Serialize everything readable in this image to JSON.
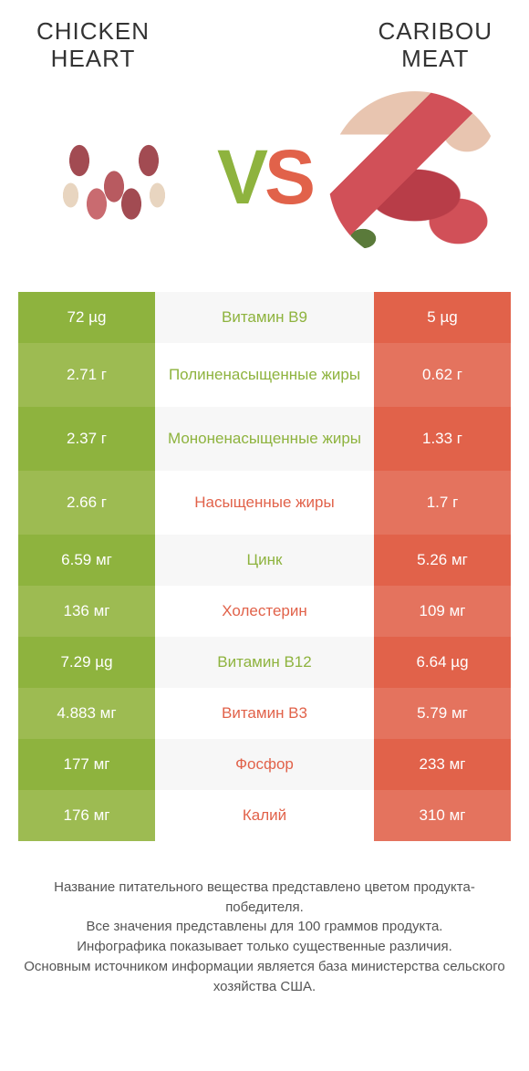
{
  "header": {
    "left_title": "CHICKEN\nHEART",
    "right_title": "CARIBOU\nMEAT",
    "vs_v": "V",
    "vs_s": "S"
  },
  "colors": {
    "left_bg_odd": "#8eb33e",
    "left_bg_even": "#9dbb52",
    "right_bg_odd": "#e1624a",
    "right_bg_even": "#e4735e",
    "mid_left_color": "#8eb33e",
    "mid_right_color": "#e1624a",
    "mid_stripe": "#f7f7f7",
    "text_white": "#ffffff"
  },
  "rows": [
    {
      "left": "72 µg",
      "mid": "Витамин B9",
      "right": "5 µg",
      "winner": "left",
      "tall": false
    },
    {
      "left": "2.71 г",
      "mid": "Полиненасыщенные жиры",
      "right": "0.62 г",
      "winner": "left",
      "tall": true
    },
    {
      "left": "2.37 г",
      "mid": "Мононенасыщенные жиры",
      "right": "1.33 г",
      "winner": "left",
      "tall": true
    },
    {
      "left": "2.66 г",
      "mid": "Насыщенные жиры",
      "right": "1.7 г",
      "winner": "right",
      "tall": true
    },
    {
      "left": "6.59 мг",
      "mid": "Цинк",
      "right": "5.26 мг",
      "winner": "left",
      "tall": false
    },
    {
      "left": "136 мг",
      "mid": "Холестерин",
      "right": "109 мг",
      "winner": "right",
      "tall": false
    },
    {
      "left": "7.29 µg",
      "mid": "Витамин B12",
      "right": "6.64 µg",
      "winner": "left",
      "tall": false
    },
    {
      "left": "4.883 мг",
      "mid": "Витамин B3",
      "right": "5.79 мг",
      "winner": "right",
      "tall": false
    },
    {
      "left": "177 мг",
      "mid": "Фосфор",
      "right": "233 мг",
      "winner": "right",
      "tall": false
    },
    {
      "left": "176 мг",
      "mid": "Калий",
      "right": "310 мг",
      "winner": "right",
      "tall": false
    }
  ],
  "footer": {
    "line1": "Название питательного вещества представлено цветом продукта-победителя.",
    "line2": "Все значения представлены для 100 граммов продукта.",
    "line3": "Инфографика показывает только существенные различия.",
    "line4": "Основным источником информации является база министерства сельского хозяйства США."
  }
}
